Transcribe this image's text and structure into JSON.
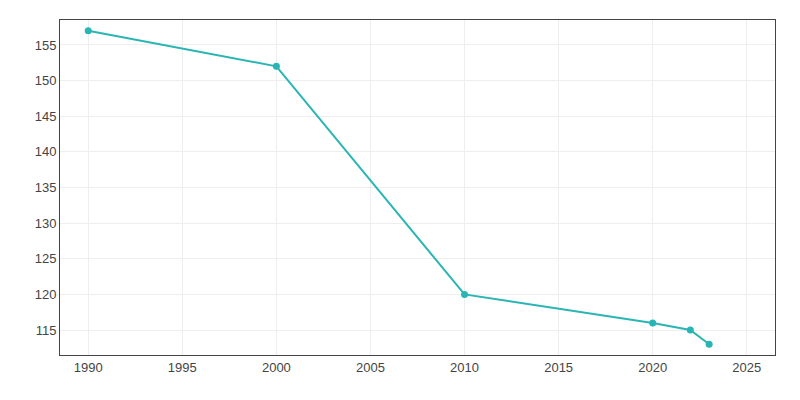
{
  "chart_data": {
    "type": "line",
    "x": [
      1990,
      2000,
      2010,
      2020,
      2022,
      2023
    ],
    "values": [
      157,
      152,
      120,
      116,
      115,
      113
    ],
    "color": "#2ab5b5",
    "marker": "circle",
    "xlim": [
      1988.5,
      2026.5
    ],
    "xticks": [
      1990,
      1995,
      2000,
      2005,
      2010,
      2015,
      2020,
      2025
    ],
    "ylim": [
      111.5,
      158.5
    ],
    "yticks": [
      115,
      120,
      125,
      130,
      135,
      140,
      145,
      150,
      155
    ],
    "grid": true
  }
}
